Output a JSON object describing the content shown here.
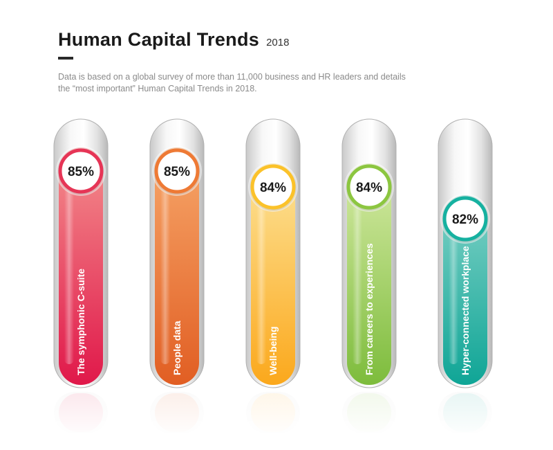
{
  "header": {
    "title": "Human Capital Trends",
    "year": "2018",
    "subtitle": "Data is based on a global survey of more than 11,000 business and HR leaders and details the “most important” Human Capital Trends in 2018."
  },
  "chart_data": {
    "type": "bar",
    "categories": [
      "The symphonic C-suite",
      "People data",
      "Well-being",
      "From careers to experiences",
      "Hyper-connected workplace"
    ],
    "values": [
      85,
      85,
      84,
      84,
      82
    ],
    "value_labels": [
      "85%",
      "85%",
      "84%",
      "84%",
      "82%"
    ],
    "title": "Human Capital Trends",
    "xlabel": "",
    "ylabel": "",
    "grid": false,
    "colors": [
      {
        "top": "#f4908e",
        "bottom": "#e0184a",
        "ring": "#e63657"
      },
      {
        "top": "#f7a76a",
        "bottom": "#e15e23",
        "ring": "#ee7a35"
      },
      {
        "top": "#fde49a",
        "bottom": "#fba81c",
        "ring": "#fbc22c"
      },
      {
        "top": "#d6eba5",
        "bottom": "#7dbc3c",
        "ring": "#8cc63f"
      },
      {
        "top": "#7fd1c6",
        "bottom": "#0fa596",
        "ring": "#18b1a0"
      }
    ]
  }
}
